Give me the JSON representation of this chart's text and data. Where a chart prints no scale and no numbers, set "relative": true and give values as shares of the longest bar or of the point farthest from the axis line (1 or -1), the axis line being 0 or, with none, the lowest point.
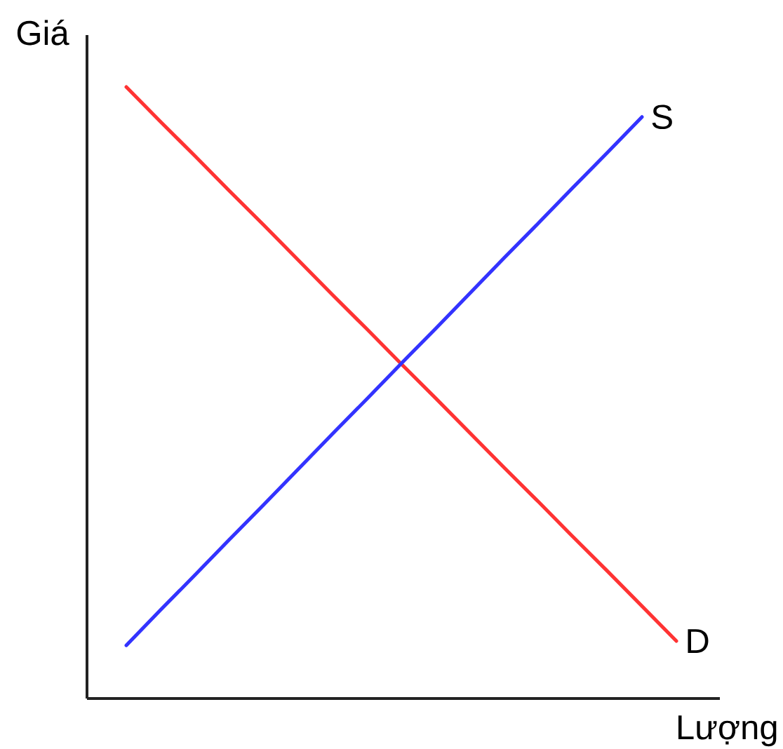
{
  "chart_data": {
    "type": "line",
    "xlabel": "Lượng",
    "ylabel": "Giá",
    "relative": true,
    "marker": "none",
    "line_style": "solid",
    "categories": [
      null,
      null,
      null,
      null,
      null,
      null,
      null,
      null,
      null,
      null,
      null,
      null,
      null,
      null,
      null,
      null,
      null
    ],
    "series": [
      {
        "name": "D",
        "color": "#ff3333",
        "values": [
          1,
          0.943,
          0.887,
          0.83,
          0.774,
          0.717,
          0.66,
          0.604,
          0.547,
          0.491,
          0.434,
          0.377,
          0.321,
          0.264,
          0.208,
          0.151,
          0.094
        ]
      },
      {
        "name": "S",
        "color": "#3333ff",
        "values": [
          0.087,
          0.145,
          0.202,
          0.26,
          0.317,
          0.375,
          0.433,
          0.49,
          0.548,
          0.605,
          0.663,
          0.721,
          0.778,
          0.836,
          0.893,
          0.951,
          null
        ]
      }
    ]
  }
}
